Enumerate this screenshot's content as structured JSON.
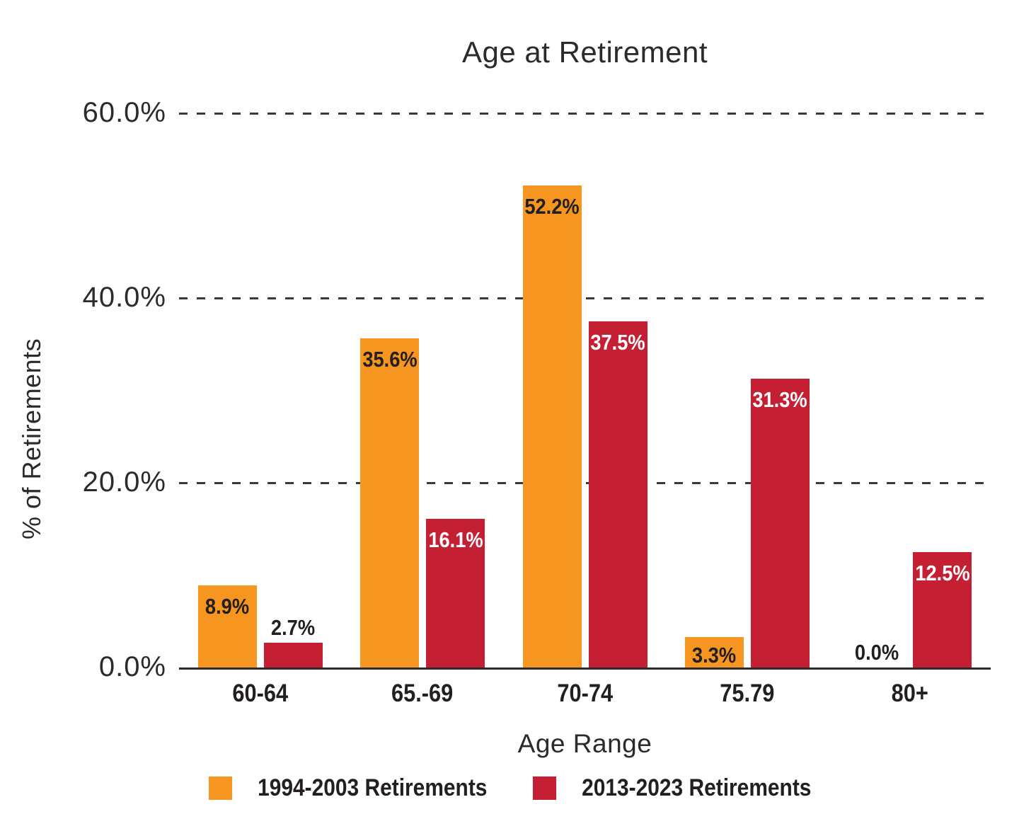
{
  "chart_data": {
    "type": "bar",
    "title": "Age at Retirement",
    "xlabel": "Age Range",
    "ylabel": "% of Retirements",
    "categories": [
      "60-64",
      "65.-69",
      "70-74",
      "75.79",
      "80+"
    ],
    "series": [
      {
        "name": "1994-2003 Retirements",
        "color": "#F6951F",
        "label_color_inside": "#231F20",
        "values": [
          8.9,
          35.6,
          52.2,
          3.3,
          0.0
        ]
      },
      {
        "name": "2013-2023 Retirements",
        "color": "#C41F32",
        "label_color_inside": "#FFFFFF",
        "values": [
          2.7,
          16.1,
          37.5,
          31.3,
          12.5
        ]
      }
    ],
    "value_labels": [
      [
        "8.9%",
        "35.6%",
        "52.2%",
        "3.3%",
        "0.0%"
      ],
      [
        "2.7%",
        "16.1%",
        "37.5%",
        "31.3%",
        "12.5%"
      ]
    ],
    "value_suffix": "%",
    "ylim": [
      0,
      60
    ],
    "yticks": [
      {
        "value": 0,
        "label": "0.0%"
      },
      {
        "value": 20,
        "label": "20.0%"
      },
      {
        "value": 40,
        "label": "40.0%"
      },
      {
        "value": 60,
        "label": "60.0%"
      }
    ],
    "gridlines": [
      20,
      40,
      60
    ],
    "grid_style": "dashed",
    "grid_color": "#3a3a3a",
    "axis_color": "#2b2b2b",
    "text_color": "#231F20",
    "outside_label_color": "#231F20",
    "legend_position": "bottom"
  }
}
